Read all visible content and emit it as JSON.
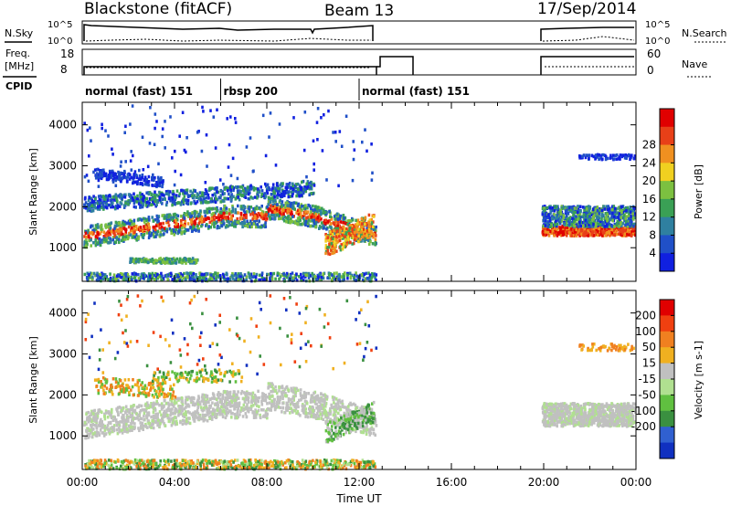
{
  "header": {
    "station": "Blackstone (fitACF)",
    "beam": "Beam 13",
    "date": "17/Sep/2014"
  },
  "strips": {
    "nsky_label": "N.Sky",
    "nsearch_label": "N.Search",
    "nsky_ticks": [
      "10^5",
      "10^0"
    ],
    "nsearch_ticks": [
      "10^5",
      "10^0"
    ],
    "freq_label_1": "Freq.",
    "freq_label_2": "[MHz]",
    "freq_ticks": [
      "18",
      "8"
    ],
    "nave_label": "Nave",
    "nave_ticks": [
      "60",
      "0"
    ],
    "cpid_label": "CPID",
    "cpid_segments": [
      {
        "label": "normal (fast) 151",
        "start": 0.0,
        "end": 6.0
      },
      {
        "label": "rbsp 200",
        "start": 6.0,
        "end": 12.0
      },
      {
        "label": "normal (fast) 151",
        "start": 12.0,
        "end": 24.0
      }
    ]
  },
  "chart_data": [
    {
      "type": "heatmap",
      "name": "power",
      "ylabel": "Slant Range [km]",
      "xlabel": "",
      "xlim": [
        0,
        24
      ],
      "ylim": [
        180,
        4550
      ],
      "yticks": [
        1000,
        2000,
        3000,
        4000
      ],
      "colorbar_label": "Power [dB]",
      "colorbar_ticks": [
        "4",
        "8",
        "12",
        "16",
        "20",
        "24",
        "28"
      ],
      "colorbar_colors": [
        "#1020e0",
        "#2050c8",
        "#2f80a0",
        "#3aa055",
        "#7cc040",
        "#f0d020",
        "#f09020",
        "#e84018",
        "#e00000"
      ],
      "data_periods": [
        [
          0.0,
          12.7
        ],
        [
          19.9,
          24.0
        ]
      ]
    },
    {
      "type": "heatmap",
      "name": "velocity",
      "ylabel": "Slant Range [km]",
      "xlabel": "Time UT",
      "xlim": [
        0,
        24
      ],
      "ylim": [
        180,
        4550
      ],
      "yticks": [
        1000,
        2000,
        3000,
        4000
      ],
      "xtick_labels": [
        "00:00",
        "04:00",
        "08:00",
        "12:00",
        "16:00",
        "20:00",
        "00:00"
      ],
      "colorbar_label": "Velocity [m s-1]",
      "colorbar_ticks": [
        "200",
        "100",
        "50",
        "15",
        "-15",
        "-50",
        "-100",
        "-200"
      ],
      "colorbar_colors": [
        "#1030c0",
        "#3060d0",
        "#3a9040",
        "#60c040",
        "#b0e090",
        "#c0c0c0",
        "#f0b020",
        "#f08020",
        "#f04010",
        "#e00000"
      ],
      "data_periods": [
        [
          0.0,
          12.7
        ],
        [
          19.9,
          24.0
        ]
      ]
    }
  ]
}
